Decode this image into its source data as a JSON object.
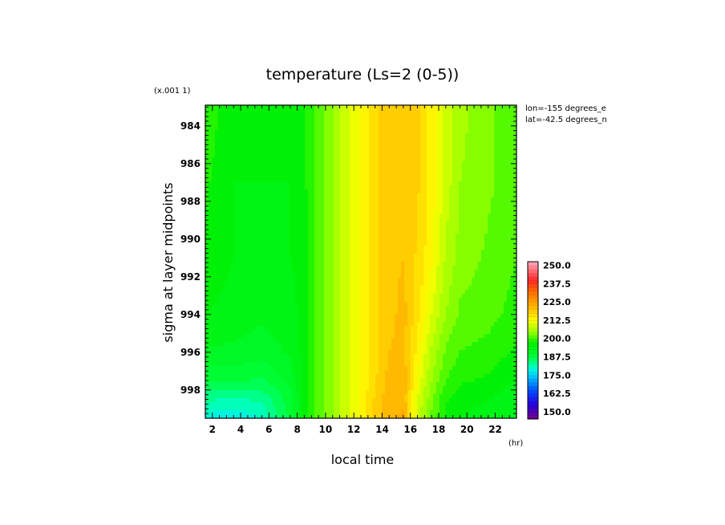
{
  "chart_data": {
    "type": "heatmap",
    "title": "temperature (Ls=2 (0-5))",
    "xlabel": "local time",
    "ylabel": "sigma at layer midpoints",
    "x_unit": "(hr)",
    "y_scale_note": "(x.001 1)",
    "annotations": [
      "lon=-155 degrees_e",
      "lat=-42.5 degrees_n"
    ],
    "xlim": [
      1.5,
      23.5
    ],
    "ylim": [
      999.5,
      982.9
    ],
    "x_ticks": [
      2,
      4,
      6,
      8,
      10,
      12,
      14,
      16,
      18,
      20,
      22
    ],
    "x_tick_labels": [
      "2",
      "4",
      "6",
      "8",
      "10",
      "12",
      "14",
      "16",
      "18",
      "20",
      "22"
    ],
    "y_ticks": [
      984,
      986,
      988,
      990,
      992,
      994,
      996,
      998
    ],
    "y_tick_labels": [
      "984",
      "986",
      "988",
      "990",
      "992",
      "994",
      "996",
      "998"
    ],
    "x": [
      1.5,
      3.5,
      5.5,
      7.5,
      8.5,
      9.5,
      10.5,
      11.5,
      12.5,
      13.5,
      14.5,
      15.5,
      16.5,
      17.5,
      18.5,
      19.5,
      21.5,
      23.5
    ],
    "y": [
      983,
      987,
      991,
      994,
      996,
      997.5,
      998.5,
      999.5
    ],
    "z": [
      [
        199,
        196,
        196,
        196,
        197,
        201,
        205,
        209,
        213,
        217,
        219,
        220,
        218,
        214,
        209,
        206,
        203,
        201
      ],
      [
        198,
        195,
        195,
        195,
        197,
        201,
        205,
        209,
        213,
        217,
        219,
        220,
        218,
        214,
        209,
        205,
        203,
        201
      ],
      [
        197,
        195,
        194,
        195,
        196,
        201,
        205,
        209,
        213,
        217,
        219,
        220,
        217,
        213,
        207,
        204,
        202,
        200
      ],
      [
        195,
        194,
        193,
        194,
        196,
        201,
        205,
        209,
        213,
        217,
        219,
        221,
        216,
        210,
        205,
        202,
        201,
        199
      ],
      [
        192,
        192,
        191,
        193,
        196,
        201,
        205,
        209,
        213,
        217,
        220,
        221,
        214,
        207,
        202,
        200,
        199,
        197
      ],
      [
        188,
        188,
        187,
        191,
        196,
        201,
        205,
        209,
        213,
        217,
        221,
        222,
        212,
        205,
        200,
        198,
        197,
        195
      ],
      [
        183,
        182,
        183,
        189,
        196,
        201,
        205,
        209,
        213,
        218,
        222,
        222,
        210,
        203,
        198,
        196,
        195,
        193
      ],
      [
        179,
        178,
        180,
        188,
        196,
        201,
        205,
        209,
        213,
        218,
        222,
        223,
        209,
        202,
        197,
        195,
        194,
        192
      ]
    ],
    "colorbar": {
      "labels": [
        "250.0",
        "237.5",
        "225.0",
        "212.5",
        "200.0",
        "187.5",
        "175.0",
        "162.5",
        "150.0"
      ],
      "levels": [
        250,
        237.5,
        225,
        212.5,
        200,
        187.5,
        175,
        162.5,
        150
      ],
      "min": 145,
      "max": 252.5
    }
  }
}
